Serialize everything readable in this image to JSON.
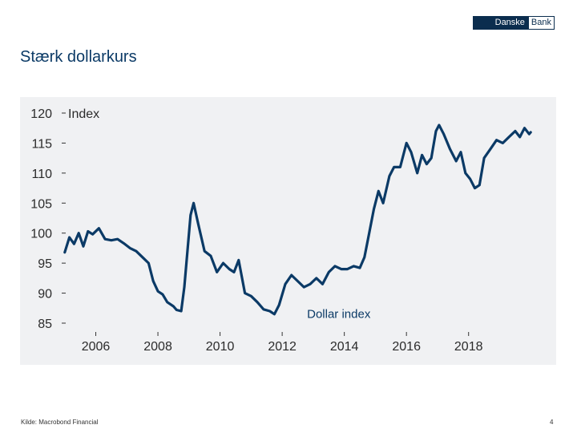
{
  "header": {
    "logo_left": "Danske",
    "logo_right": "Bank",
    "slide_title": "Stærk dollarkurs"
  },
  "footer": {
    "source": "Kilde: Macrobond Financial",
    "page_number": "4"
  },
  "colors": {
    "line": "#0b3a66",
    "panel_bg": "#f0f1f3",
    "brand": "#0b2d4e"
  },
  "chart_data": {
    "type": "line",
    "title": "",
    "ylabel": "Index",
    "xlabel": "",
    "ylim": [
      85,
      120
    ],
    "xlim": [
      2004.8,
      2020.2
    ],
    "yticks": [
      120,
      115,
      110,
      105,
      100,
      95,
      90,
      85
    ],
    "xticks": [
      2006,
      2008,
      2010,
      2012,
      2014,
      2016,
      2018
    ],
    "grid": false,
    "annotation": "Dollar index",
    "series": [
      {
        "name": "Dollar index",
        "x": [
          2005.0,
          2005.15,
          2005.3,
          2005.45,
          2005.6,
          2005.75,
          2005.9,
          2006.1,
          2006.3,
          2006.5,
          2006.7,
          2006.9,
          2007.1,
          2007.3,
          2007.5,
          2007.7,
          2007.85,
          2008.0,
          2008.15,
          2008.3,
          2008.5,
          2008.6,
          2008.75,
          2008.85,
          2008.95,
          2009.05,
          2009.15,
          2009.3,
          2009.5,
          2009.7,
          2009.9,
          2010.1,
          2010.3,
          2010.45,
          2010.6,
          2010.8,
          2011.0,
          2011.2,
          2011.4,
          2011.6,
          2011.75,
          2011.9,
          2012.1,
          2012.3,
          2012.5,
          2012.7,
          2012.9,
          2013.1,
          2013.3,
          2013.5,
          2013.7,
          2013.9,
          2014.1,
          2014.3,
          2014.5,
          2014.65,
          2014.8,
          2014.95,
          2015.1,
          2015.25,
          2015.45,
          2015.6,
          2015.8,
          2016.0,
          2016.15,
          2016.35,
          2016.5,
          2016.65,
          2016.8,
          2016.95,
          2017.05,
          2017.2,
          2017.4,
          2017.6,
          2017.75,
          2017.9,
          2018.05,
          2018.2,
          2018.35,
          2018.5,
          2018.7,
          2018.9,
          2019.1,
          2019.3,
          2019.5,
          2019.65,
          2019.8,
          2019.95,
          2020.0
        ],
        "values": [
          96.8,
          99.3,
          98.2,
          100.0,
          97.8,
          100.3,
          99.8,
          100.8,
          99.0,
          98.8,
          99.0,
          98.3,
          97.5,
          97.0,
          96.0,
          95.0,
          92.0,
          90.3,
          89.8,
          88.5,
          87.8,
          87.2,
          87.0,
          91.0,
          97.0,
          103.0,
          105.0,
          101.5,
          97.0,
          96.2,
          93.5,
          95.0,
          94.0,
          93.5,
          95.5,
          90.0,
          89.5,
          88.5,
          87.3,
          87.0,
          86.5,
          88.0,
          91.5,
          93.0,
          92.0,
          91.0,
          91.5,
          92.5,
          91.5,
          93.5,
          94.5,
          94.0,
          94.0,
          94.5,
          94.2,
          96.0,
          100.0,
          104.0,
          107.0,
          105.0,
          109.5,
          111.0,
          111.0,
          115.0,
          113.5,
          110.0,
          113.0,
          111.5,
          112.5,
          117.0,
          118.0,
          116.5,
          114.0,
          112.0,
          113.5,
          110.0,
          109.0,
          107.5,
          108.0,
          112.5,
          114.0,
          115.5,
          115.0,
          116.0,
          117.0,
          116.0,
          117.5,
          116.5,
          116.8
        ]
      }
    ]
  }
}
